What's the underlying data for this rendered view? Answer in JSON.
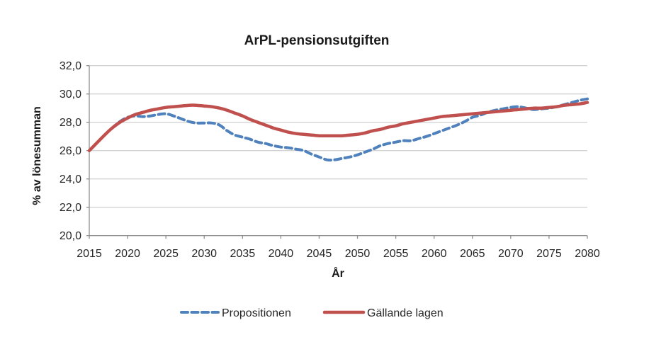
{
  "chart_data": {
    "type": "line",
    "title": "ArPL-pensionsutgiften",
    "xlabel": "År",
    "ylabel": "% av lönesumman",
    "xlim": [
      2015,
      2080
    ],
    "ylim": [
      20,
      32
    ],
    "grid": true,
    "legend_position": "bottom-center",
    "x_tick_values": [
      2015,
      2020,
      2025,
      2030,
      2035,
      2040,
      2045,
      2050,
      2055,
      2060,
      2065,
      2070,
      2075,
      2080
    ],
    "x_tick_labels": [
      "2015",
      "2020",
      "2025",
      "2030",
      "2035",
      "2040",
      "2045",
      "2050",
      "2055",
      "2060",
      "2065",
      "2070",
      "2075",
      "2080"
    ],
    "y_tick_values": [
      20,
      22,
      24,
      26,
      28,
      30,
      32
    ],
    "y_tick_labels": [
      "20,0",
      "22,0",
      "24,0",
      "26,0",
      "28,0",
      "30,0",
      "32,0"
    ],
    "years": [
      2015,
      2016,
      2017,
      2018,
      2019,
      2020,
      2021,
      2022,
      2023,
      2024,
      2025,
      2026,
      2027,
      2028,
      2029,
      2030,
      2031,
      2032,
      2033,
      2034,
      2035,
      2036,
      2037,
      2038,
      2039,
      2040,
      2041,
      2042,
      2043,
      2044,
      2045,
      2046,
      2047,
      2048,
      2049,
      2050,
      2051,
      2052,
      2053,
      2054,
      2055,
      2056,
      2057,
      2058,
      2059,
      2060,
      2061,
      2062,
      2063,
      2064,
      2065,
      2066,
      2067,
      2068,
      2069,
      2070,
      2071,
      2072,
      2073,
      2074,
      2075,
      2076,
      2077,
      2078,
      2079,
      2080
    ],
    "series": [
      {
        "name": "Propositionen",
        "color": "#4F81BD",
        "style": "dashed",
        "values": [
          26.0,
          26.55,
          27.1,
          27.6,
          28.05,
          28.35,
          28.45,
          28.4,
          28.45,
          28.55,
          28.6,
          28.45,
          28.25,
          28.05,
          27.95,
          27.95,
          27.95,
          27.8,
          27.4,
          27.1,
          26.95,
          26.8,
          26.6,
          26.5,
          26.35,
          26.25,
          26.2,
          26.1,
          26.0,
          25.75,
          25.55,
          25.35,
          25.35,
          25.45,
          25.55,
          25.7,
          25.9,
          26.1,
          26.35,
          26.5,
          26.6,
          26.7,
          26.7,
          26.85,
          27.0,
          27.2,
          27.4,
          27.6,
          27.8,
          28.05,
          28.35,
          28.5,
          28.7,
          28.85,
          28.95,
          29.05,
          29.1,
          29.0,
          28.9,
          28.95,
          29.0,
          29.1,
          29.25,
          29.4,
          29.55,
          29.65
        ]
      },
      {
        "name": "Gällande lagen",
        "color": "#C0504D",
        "style": "solid",
        "values": [
          26.0,
          26.55,
          27.1,
          27.6,
          28.0,
          28.3,
          28.55,
          28.7,
          28.85,
          28.95,
          29.05,
          29.1,
          29.15,
          29.2,
          29.2,
          29.15,
          29.1,
          29.0,
          28.85,
          28.65,
          28.45,
          28.2,
          28.0,
          27.8,
          27.6,
          27.45,
          27.3,
          27.2,
          27.15,
          27.1,
          27.05,
          27.05,
          27.05,
          27.05,
          27.1,
          27.15,
          27.25,
          27.4,
          27.5,
          27.65,
          27.75,
          27.9,
          28.0,
          28.1,
          28.2,
          28.3,
          28.4,
          28.45,
          28.5,
          28.55,
          28.6,
          28.65,
          28.7,
          28.75,
          28.8,
          28.85,
          28.9,
          28.95,
          29.0,
          29.0,
          29.05,
          29.1,
          29.2,
          29.25,
          29.3,
          29.4
        ]
      }
    ],
    "colors": {
      "gridline": "#C3C3C3",
      "axis": "#8E8E8E",
      "text": "#262626",
      "background": "#FFFFFF"
    }
  }
}
